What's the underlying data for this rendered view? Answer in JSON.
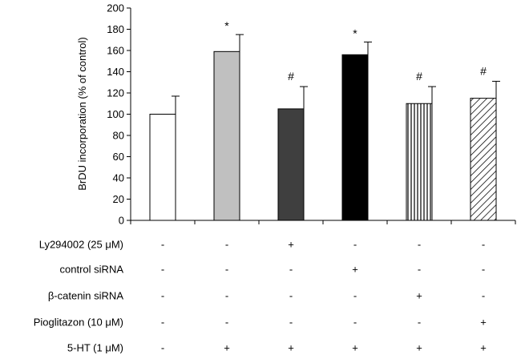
{
  "chart_data": {
    "type": "bar",
    "title": "",
    "xlabel": "",
    "ylabel": "BrDU incorporation  (% of control)",
    "ylim": [
      0,
      200
    ],
    "yticks": [
      0,
      20,
      40,
      60,
      80,
      100,
      120,
      140,
      160,
      180,
      200
    ],
    "grid": false,
    "bars": [
      {
        "value": 100,
        "error": 17,
        "fill": "#ffffff",
        "pattern": "none",
        "sig": ""
      },
      {
        "value": 159,
        "error": 16,
        "fill": "#c0c0c0",
        "pattern": "none",
        "sig": "*"
      },
      {
        "value": 105,
        "error": 21,
        "fill": "#3f3f3f",
        "pattern": "none",
        "sig": "#"
      },
      {
        "value": 156,
        "error": 12,
        "fill": "#000000",
        "pattern": "none",
        "sig": "*"
      },
      {
        "value": 110,
        "error": 16,
        "fill": "#ffffff",
        "pattern": "vertical-lines",
        "sig": "#"
      },
      {
        "value": 115,
        "error": 16,
        "fill": "#ffffff",
        "pattern": "diagonal-lines",
        "sig": "#"
      }
    ],
    "conditions": [
      {
        "label": "Ly294002 (25 μM)",
        "marks": [
          "-",
          "-",
          "+",
          "-",
          "-",
          "-"
        ]
      },
      {
        "label": "control siRNA",
        "marks": [
          "-",
          "-",
          "-",
          "+",
          "-",
          "-"
        ]
      },
      {
        "label": "β-catenin siRNA",
        "marks": [
          "-",
          "-",
          "-",
          "-",
          "+",
          "-"
        ]
      },
      {
        "label": "Pioglitazon (10 μM)",
        "marks": [
          "-",
          "-",
          "-",
          "-",
          "-",
          "+"
        ]
      },
      {
        "label": "5-HT (1 μM)",
        "marks": [
          "-",
          "+",
          "+",
          "+",
          "+",
          "+"
        ]
      }
    ]
  }
}
